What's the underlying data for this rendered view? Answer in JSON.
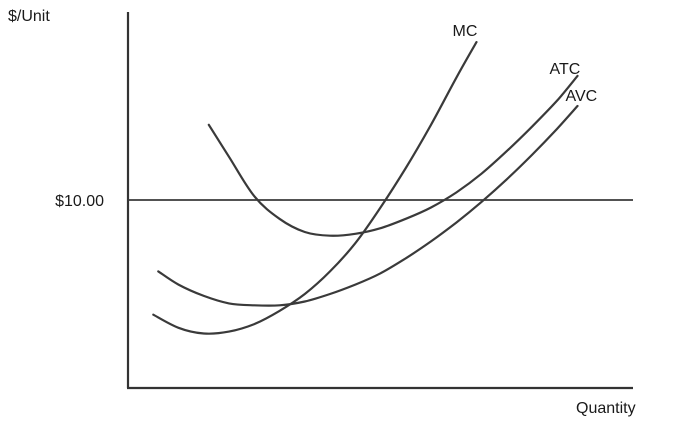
{
  "chart_data": {
    "type": "line",
    "ylabel": "$/Unit",
    "xlabel": "Quantity",
    "ylim": [
      0,
      20
    ],
    "xlim": [
      0,
      10
    ],
    "grid": false,
    "legend": "none",
    "reference_line": {
      "value": 10,
      "label": "$10.00"
    },
    "series": [
      {
        "name": "MC",
        "x": [
          0.5,
          1.0,
          1.5,
          2.0,
          2.5,
          3.0,
          3.5,
          4.0,
          4.5,
          5.0,
          5.5,
          6.0,
          6.5,
          6.9
        ],
        "y": [
          3.9,
          3.2,
          2.9,
          3.0,
          3.4,
          4.1,
          5.0,
          6.2,
          7.7,
          9.6,
          11.7,
          14.0,
          16.5,
          18.4
        ]
      },
      {
        "name": "ATC",
        "x": [
          1.6,
          2.0,
          2.5,
          3.0,
          3.5,
          4.0,
          4.5,
          5.0,
          5.5,
          6.0,
          6.5,
          7.0,
          7.5,
          8.0,
          8.5,
          8.9
        ],
        "y": [
          14.0,
          12.3,
          10.2,
          9.0,
          8.3,
          8.1,
          8.2,
          8.5,
          9.0,
          9.6,
          10.4,
          11.4,
          12.6,
          13.9,
          15.3,
          16.6
        ]
      },
      {
        "name": "AVC",
        "x": [
          0.6,
          1.0,
          1.5,
          2.0,
          2.5,
          3.0,
          3.5,
          4.0,
          4.5,
          5.0,
          5.5,
          6.0,
          6.5,
          7.0,
          7.5,
          8.0,
          8.5,
          8.9
        ],
        "y": [
          6.2,
          5.5,
          4.9,
          4.5,
          4.4,
          4.4,
          4.6,
          5.0,
          5.5,
          6.1,
          6.9,
          7.8,
          8.8,
          9.9,
          11.1,
          12.4,
          13.8,
          15.0
        ]
      }
    ]
  }
}
